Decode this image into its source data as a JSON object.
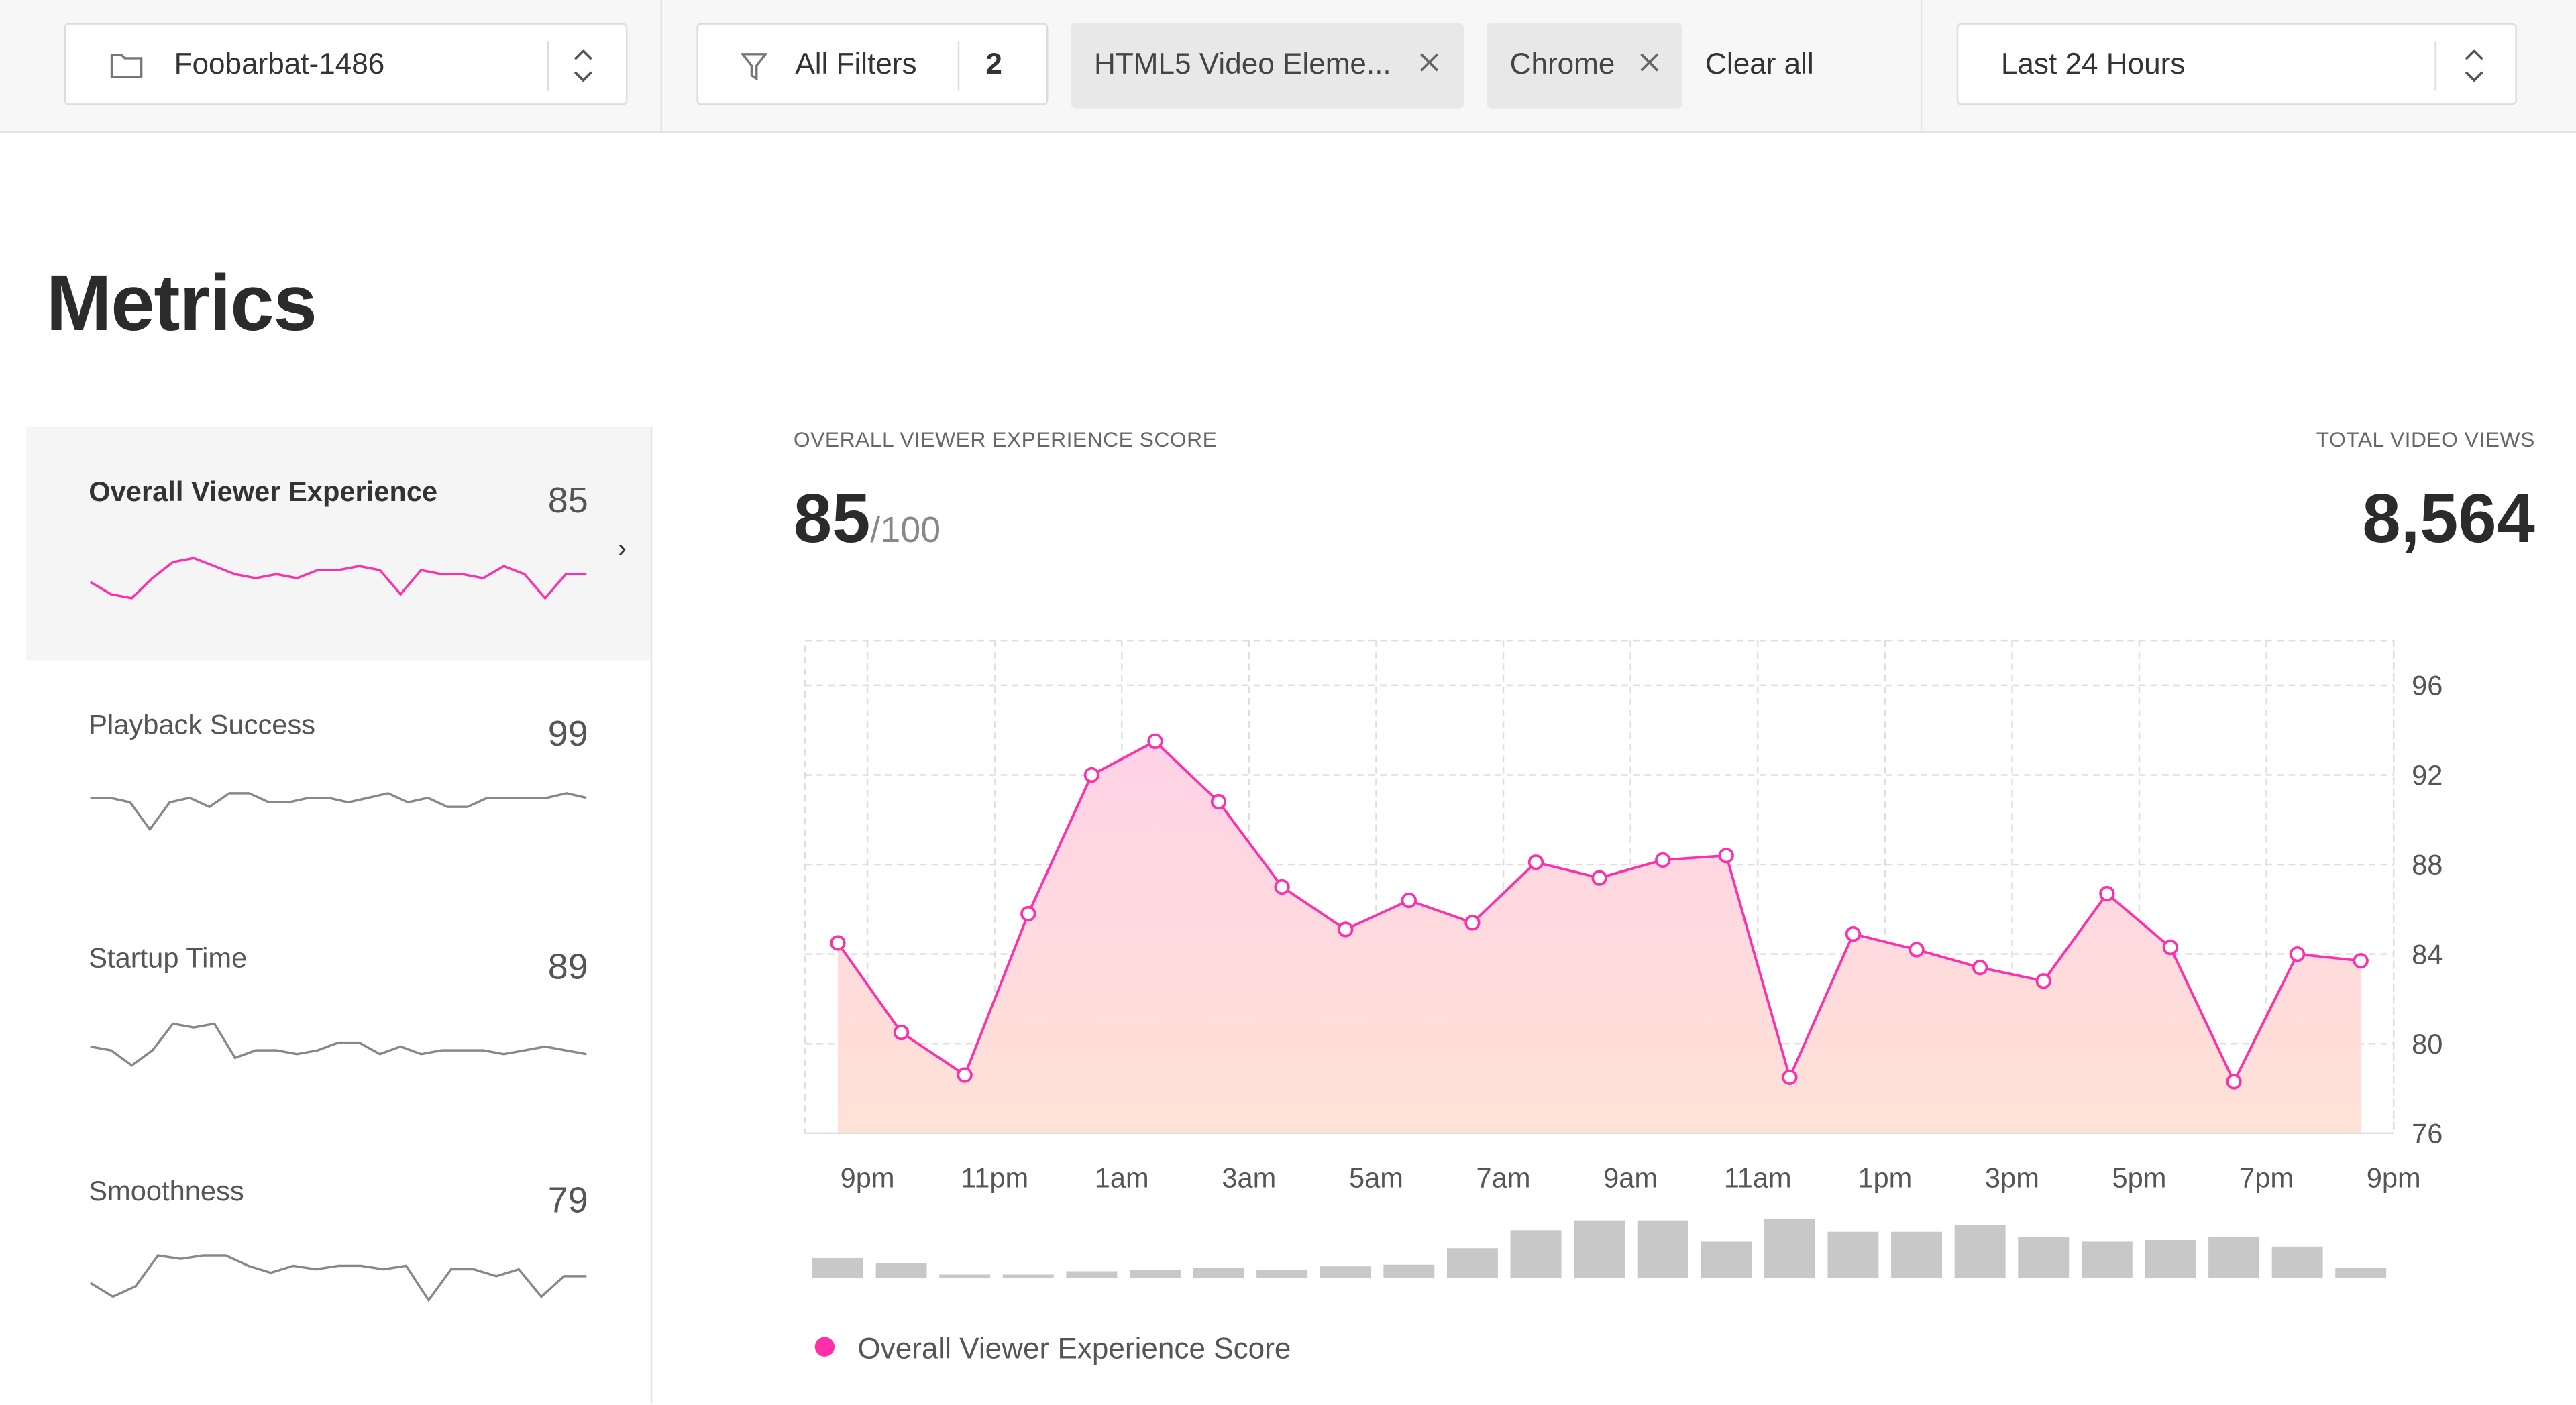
{
  "header": {
    "project": {
      "label": "Foobarbat-1486",
      "icon": "folder-icon"
    },
    "filters": {
      "label": "All Filters",
      "count": "2",
      "icon": "filter-icon"
    },
    "chips": [
      {
        "label": "HTML5 Video Eleme...",
        "icon": "close-icon"
      },
      {
        "label": "Chrome",
        "icon": "close-icon"
      }
    ],
    "clear_label": "Clear all",
    "timeframe": {
      "label": "Last 24 Hours"
    }
  },
  "page_title": "Metrics",
  "metrics": [
    {
      "name": "Overall Viewer Experience",
      "value": "85",
      "selected": true,
      "color": "#ff2eaa",
      "spark": [
        82,
        79,
        78,
        83,
        87,
        88,
        86,
        84,
        83,
        84,
        83,
        85,
        85,
        86,
        85,
        79,
        85,
        84,
        84,
        83,
        86,
        84,
        78,
        84,
        84
      ]
    },
    {
      "name": "Playback Success",
      "value": "99",
      "selected": false,
      "color": "#888888",
      "spark": [
        86,
        86,
        85,
        79,
        85,
        86,
        84,
        87,
        87,
        85,
        85,
        86,
        86,
        85,
        86,
        87,
        85,
        86,
        84,
        84,
        86,
        86,
        86,
        86,
        87,
        86
      ]
    },
    {
      "name": "Startup Time",
      "value": "89",
      "selected": false,
      "color": "#888888",
      "spark": [
        85,
        84,
        80,
        84,
        91,
        90,
        91,
        82,
        84,
        84,
        83,
        84,
        86,
        86,
        83,
        85,
        83,
        84,
        84,
        84,
        83,
        84,
        85,
        84,
        83
      ]
    },
    {
      "name": "Smoothness",
      "value": "79",
      "selected": false,
      "color": "#888888",
      "spark": [
        83,
        79,
        82,
        91,
        90,
        91,
        91,
        88,
        86,
        88,
        87,
        88,
        88,
        87,
        88,
        78,
        87,
        87,
        85,
        87,
        79,
        85,
        85
      ]
    }
  ],
  "chart_header": {
    "score_caption": "OVERALL VIEWER EXPERIENCE SCORE",
    "score": "85",
    "score_denominator": "/100",
    "views_caption": "TOTAL VIDEO VIEWS",
    "views": "8,564"
  },
  "chart_data": {
    "type": "area",
    "series": [
      {
        "name": "Overall Viewer Experience Score",
        "color": "#ff2eaa",
        "values": [
          84.5,
          80.5,
          78.6,
          85.8,
          92.0,
          93.5,
          90.8,
          87.0,
          85.1,
          86.4,
          85.4,
          88.1,
          87.4,
          88.2,
          88.4,
          78.5,
          84.9,
          84.2,
          83.4,
          82.8,
          86.7,
          84.3,
          78.3,
          84.0,
          83.7
        ]
      },
      {
        "name": "views-volume",
        "color": "#c8c8c8",
        "values": [
          12,
          9,
          2,
          2,
          4,
          5,
          6,
          5,
          7,
          8,
          18,
          29,
          35,
          35,
          22,
          36,
          28,
          28,
          32,
          25,
          22,
          23,
          25,
          19,
          6
        ]
      }
    ],
    "xticks": [
      "9pm",
      "11pm",
      "1am",
      "3am",
      "5am",
      "7am",
      "9am",
      "11am",
      "1pm",
      "3pm",
      "5pm",
      "7pm",
      "9pm"
    ],
    "yticks": [
      "96",
      "92",
      "88",
      "84",
      "80",
      "76"
    ],
    "ylim": [
      76,
      98
    ],
    "grid": true,
    "legend_position": "bottom-left",
    "legend": "Overall Viewer Experience Score"
  }
}
